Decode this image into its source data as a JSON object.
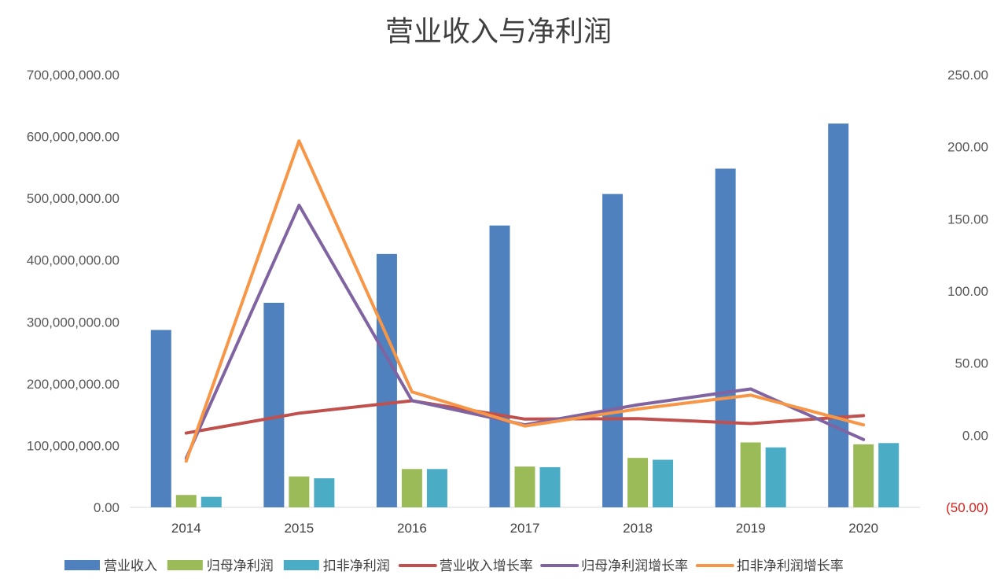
{
  "chart_data": {
    "type": "bar",
    "title": "营业收入与净利润",
    "categories": [
      "2014",
      "2015",
      "2016",
      "2017",
      "2018",
      "2019",
      "2020"
    ],
    "y_left": {
      "ylim": [
        0,
        700000000
      ],
      "ticks": [
        "0.00",
        "100,000,000.00",
        "200,000,000.00",
        "300,000,000.00",
        "400,000,000.00",
        "500,000,000.00",
        "600,000,000.00",
        "700,000,000.00"
      ],
      "tick_values": [
        0,
        100000000,
        200000000,
        300000000,
        400000000,
        500000000,
        600000000,
        700000000
      ]
    },
    "y_right": {
      "ylim": [
        -50,
        250
      ],
      "ticks": [
        "(50.00)",
        "0.00",
        "50.00",
        "100.00",
        "150.00",
        "200.00",
        "250.00"
      ],
      "tick_values": [
        -50,
        0,
        50,
        100,
        150,
        200,
        250
      ],
      "negative_color": "#e0201b"
    },
    "bar_series": [
      {
        "name": "营业收入",
        "color": "#4e81bd",
        "values": [
          287000000,
          331000000,
          410000000,
          456000000,
          507000000,
          548000000,
          621000000
        ]
      },
      {
        "name": "归母净利润",
        "color": "#9bbb59",
        "values": [
          20000000,
          50000000,
          62000000,
          66000000,
          80000000,
          105000000,
          102000000
        ]
      },
      {
        "name": "扣非净利润",
        "color": "#4bacc6",
        "values": [
          17000000,
          47000000,
          62000000,
          65000000,
          77000000,
          97000000,
          104000000
        ]
      }
    ],
    "line_series": [
      {
        "name": "营业收入增长率",
        "color": "#c0504d",
        "values": [
          1.5,
          15.3,
          23.9,
          11.2,
          11.5,
          8.1,
          13.6
        ]
      },
      {
        "name": "归母净利润增长率",
        "color": "#8064a2",
        "values": [
          -16,
          159.5,
          24,
          7.2,
          21.1,
          32.1,
          -3
        ]
      },
      {
        "name": "扣非净利润增长率",
        "color": "#f79646",
        "values": [
          -18,
          204.1,
          30.1,
          6.4,
          18.2,
          27.8,
          7.2
        ]
      }
    ],
    "legend_position": "bottom",
    "grid": false
  }
}
